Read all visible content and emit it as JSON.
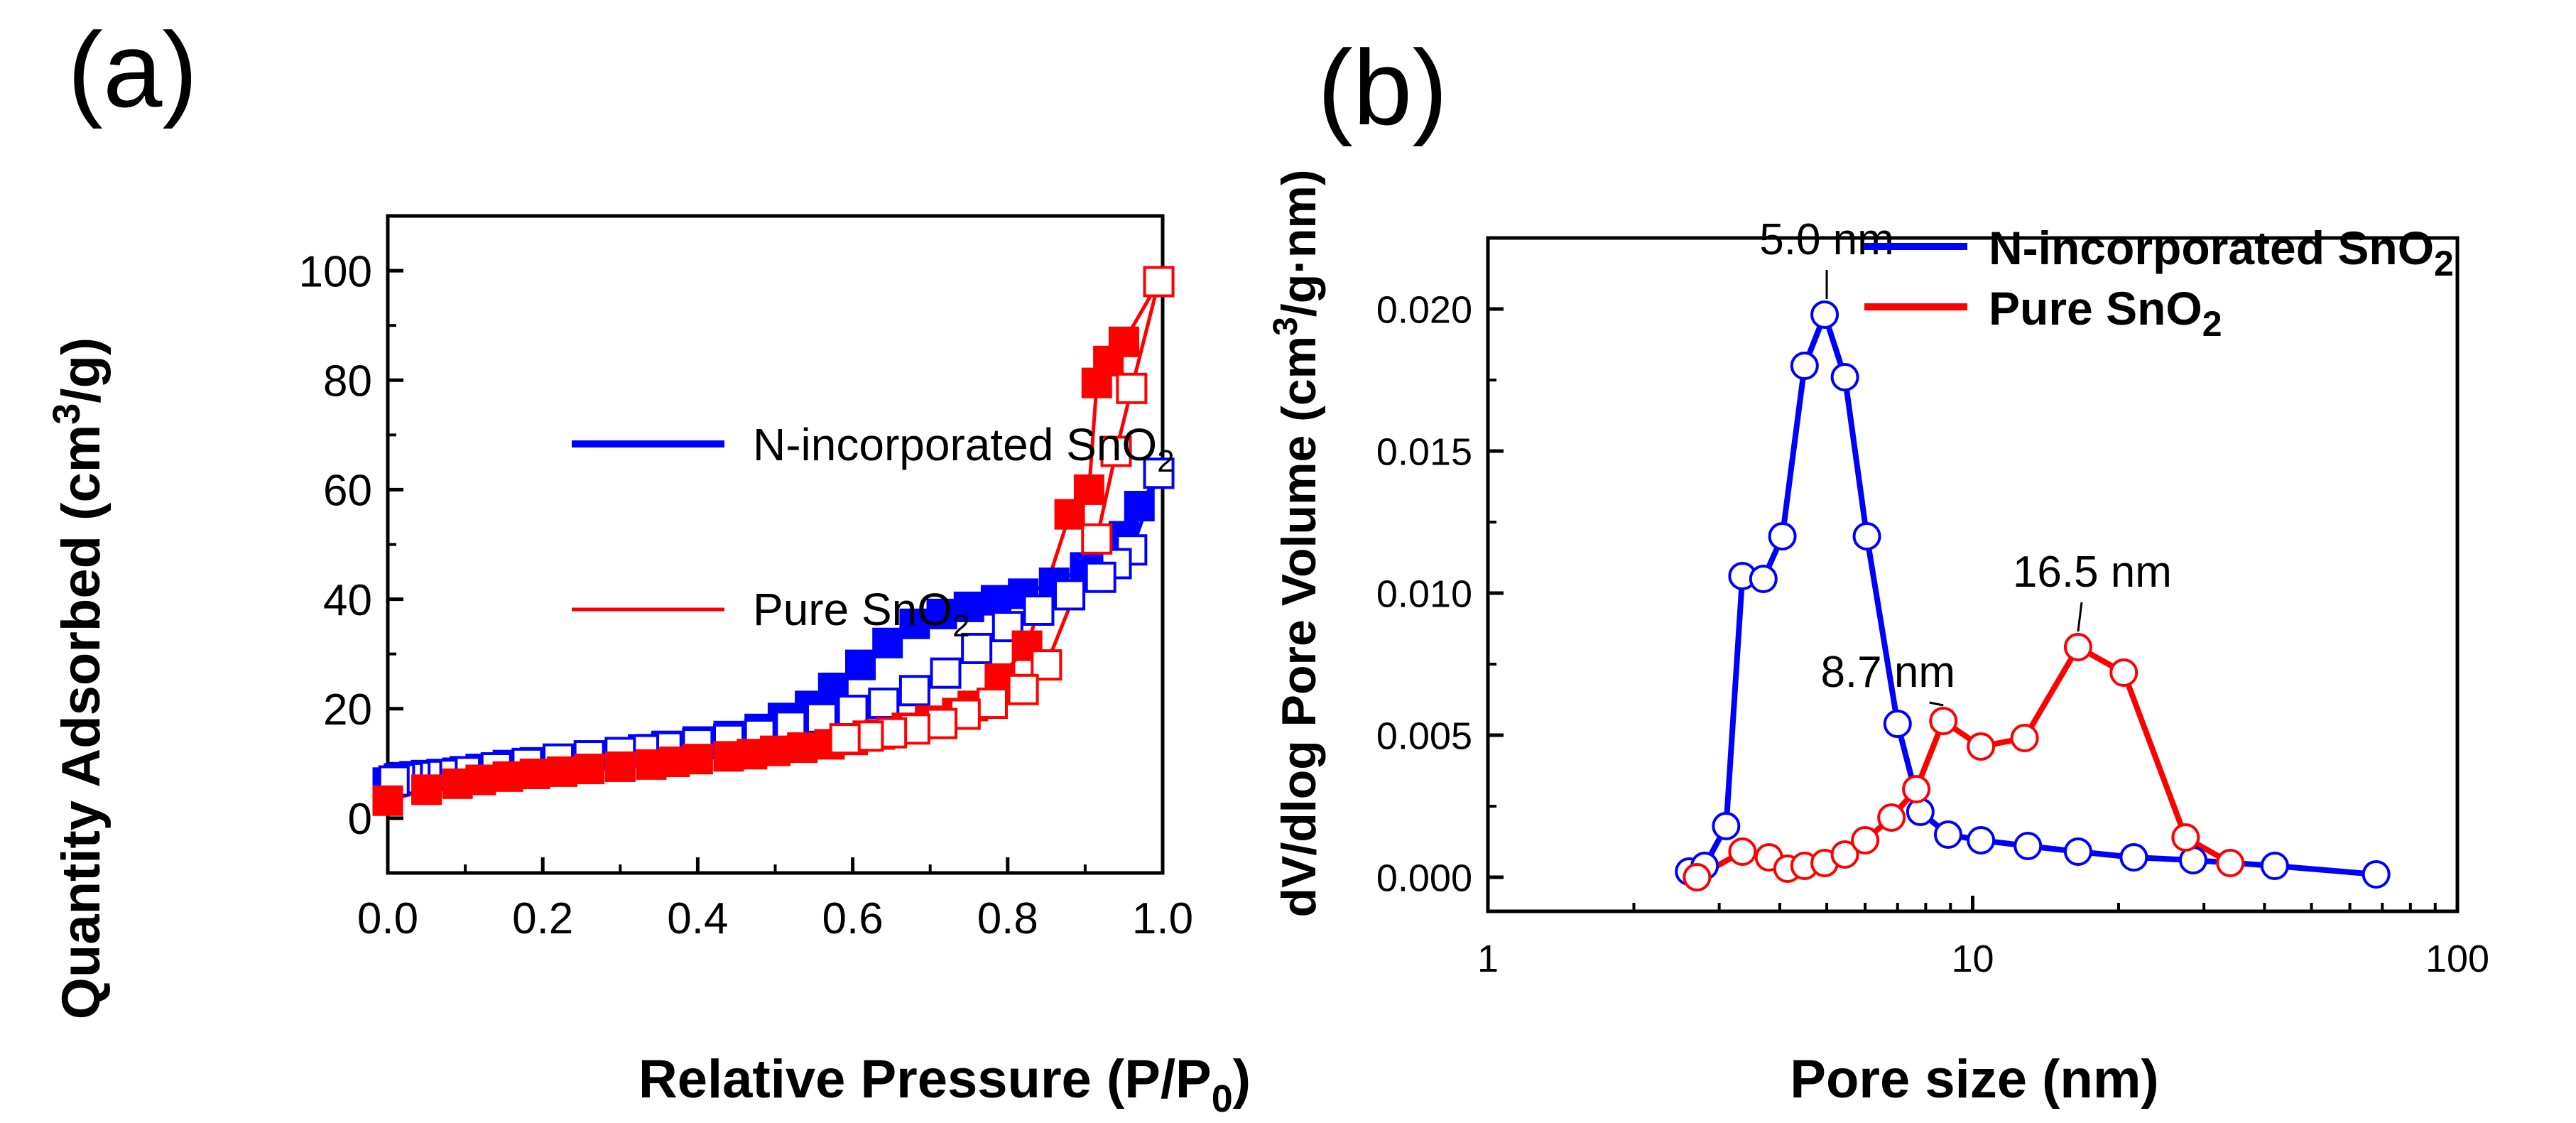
{
  "chart_data": [
    {
      "type": "scatter",
      "panel_label": "(a)",
      "title": "",
      "xlabel": "Relative Pressure (P/P",
      "xlabel_sub": "0",
      "xlabel_end": ")",
      "ylabel": "Quantity Adsorbed (cm",
      "ylabel_sup": "3",
      "ylabel_end": "/g)",
      "xlim": [
        0.0,
        1.0
      ],
      "ylim": [
        -10,
        110
      ],
      "xticks": [
        "0.0",
        "0.2",
        "0.4",
        "0.6",
        "0.8",
        "1.0"
      ],
      "xtick_values": [
        0.0,
        0.2,
        0.4,
        0.6,
        0.8,
        1.0
      ],
      "yticks": [
        "0",
        "20",
        "40",
        "60",
        "80",
        "100"
      ],
      "ytick_values": [
        0,
        20,
        40,
        60,
        80,
        100
      ],
      "legend": [
        {
          "name": "N-incorporated SnO",
          "sub": "2",
          "color": "#0000ff"
        },
        {
          "name": "Pure SnO",
          "sub": "2",
          "color": "#ff0000"
        }
      ],
      "series": [
        {
          "name": "N-incorporated SnO2 adsorption",
          "color": "#0000ff",
          "marker": "square-filled",
          "x": [
            0.0,
            0.05,
            0.09,
            0.12,
            0.155,
            0.19,
            0.225,
            0.26,
            0.3,
            0.34,
            0.36,
            0.4,
            0.44,
            0.48,
            0.51,
            0.545,
            0.575,
            0.61,
            0.645,
            0.68,
            0.715,
            0.75,
            0.785,
            0.82,
            0.86,
            0.9,
            0.925,
            0.95,
            0.97,
            0.995
          ],
          "y": [
            6.5,
            7.5,
            8.3,
            9.0,
            9.7,
            10.2,
            10.7,
            11.2,
            11.8,
            12.6,
            13.2,
            14.0,
            15.0,
            16.3,
            18.3,
            20.5,
            23.8,
            28.0,
            32.0,
            35.5,
            37.3,
            38.6,
            39.8,
            41.0,
            43.0,
            45.8,
            47.8,
            51.5,
            57.0,
            63.0
          ]
        },
        {
          "name": "N-incorporated SnO2 desorption",
          "color": "#0000ff",
          "marker": "square-open",
          "x": [
            0.995,
            0.96,
            0.94,
            0.92,
            0.88,
            0.84,
            0.8,
            0.76,
            0.72,
            0.68,
            0.64,
            0.6,
            0.56,
            0.52,
            0.48,
            0.44,
            0.4,
            0.36,
            0.33,
            0.3,
            0.26,
            0.22,
            0.18,
            0.14,
            0.1,
            0.07,
            0.05,
            0.035,
            0.025,
            0.015,
            0.008
          ],
          "y": [
            63.0,
            49.0,
            46.5,
            44.0,
            40.8,
            38.0,
            35.0,
            31.0,
            26.5,
            23.3,
            21.0,
            19.7,
            18.3,
            16.8,
            15.3,
            14.4,
            13.6,
            13.0,
            12.5,
            12.0,
            11.4,
            10.8,
            10.0,
            9.2,
            8.5,
            8.0,
            7.8,
            7.6,
            7.4,
            7.2,
            6.8
          ]
        },
        {
          "name": "Pure SnO2 adsorption",
          "color": "#ff0000",
          "marker": "square-filled",
          "x": [
            0.0,
            0.05,
            0.09,
            0.12,
            0.155,
            0.19,
            0.225,
            0.26,
            0.3,
            0.34,
            0.37,
            0.4,
            0.44,
            0.47,
            0.5,
            0.535,
            0.57,
            0.6,
            0.635,
            0.67,
            0.7,
            0.735,
            0.755,
            0.79,
            0.825,
            0.88,
            0.905,
            0.915,
            0.93,
            0.95,
            0.995
          ],
          "y": [
            3.2,
            5.2,
            6.3,
            7.0,
            7.6,
            8.1,
            8.5,
            9.0,
            9.4,
            9.8,
            10.3,
            10.8,
            11.3,
            11.7,
            12.3,
            12.9,
            13.5,
            14.3,
            15.3,
            16.5,
            17.8,
            19.2,
            20.5,
            25.5,
            31.5,
            55.5,
            60.0,
            79.5,
            83.5,
            87.0,
            98.0
          ]
        },
        {
          "name": "Pure SnO2 desorption",
          "color": "#ff0000",
          "marker": "square-open",
          "x": [
            0.995,
            0.96,
            0.94,
            0.915,
            0.85,
            0.82,
            0.78,
            0.745,
            0.715,
            0.68,
            0.65,
            0.62,
            0.59
          ],
          "y": [
            98.0,
            78.5,
            67.0,
            51.0,
            28.0,
            23.5,
            21.0,
            19.0,
            17.3,
            16.3,
            15.6,
            15.0,
            14.5
          ]
        }
      ]
    },
    {
      "type": "line",
      "panel_label": "(b)",
      "title": "",
      "xlabel": "Pore size (nm)",
      "ylabel": "dV/dlog Pore Volume (cm",
      "ylabel_sup": "3",
      "ylabel_end": "/g·nm)",
      "xscale": "log",
      "xlim": [
        1,
        100
      ],
      "ylim": [
        -0.0012,
        0.0225
      ],
      "xticks": [
        "1",
        "10",
        "100"
      ],
      "xtick_values": [
        1,
        10,
        100
      ],
      "yticks": [
        "0.000",
        "0.005",
        "0.010",
        "0.015",
        "0.020"
      ],
      "ytick_values": [
        0.0,
        0.005,
        0.01,
        0.015,
        0.02
      ],
      "legend": [
        {
          "name": "N-incorporated SnO",
          "sub": "2",
          "color": "#0000ff"
        },
        {
          "name": "Pure SnO",
          "sub": "2",
          "color": "#ff0000"
        }
      ],
      "annotations": [
        {
          "text": "5.0 nm",
          "x": 5.0,
          "y": 0.0198
        },
        {
          "text": "8.7 nm",
          "x": 8.7,
          "y": 0.0055
        },
        {
          "text": "16.5 nm",
          "x": 16.5,
          "y": 0.0081
        }
      ],
      "series": [
        {
          "name": "N-incorporated SnO2",
          "color": "#0000ff",
          "marker": "circle-open",
          "x": [
            2.6,
            2.8,
            3.1,
            3.35,
            3.7,
            4.05,
            4.5,
            4.95,
            5.45,
            6.05,
            7.0,
            7.8,
            8.9,
            10.4,
            13.0,
            16.5,
            21.5,
            28.5,
            42.0,
            68.0
          ],
          "y": [
            0.0002,
            0.0004,
            0.0018,
            0.0106,
            0.0105,
            0.012,
            0.018,
            0.0198,
            0.0176,
            0.012,
            0.0054,
            0.0023,
            0.0015,
            0.0013,
            0.0011,
            0.0009,
            0.0007,
            0.0006,
            0.0004,
            0.0001
          ]
        },
        {
          "name": "Pure SnO2",
          "color": "#ff0000",
          "marker": "circle-open",
          "x": [
            2.7,
            3.35,
            3.8,
            4.15,
            4.5,
            4.95,
            5.45,
            6.0,
            6.8,
            7.65,
            8.7,
            10.4,
            12.8,
            16.5,
            20.5,
            27.5,
            34.0
          ],
          "y": [
            0.0,
            0.0009,
            0.0007,
            0.0003,
            0.0004,
            0.0005,
            0.0008,
            0.0013,
            0.0021,
            0.0031,
            0.0055,
            0.0046,
            0.0049,
            0.0081,
            0.0072,
            0.0014,
            0.0005
          ]
        }
      ]
    }
  ]
}
